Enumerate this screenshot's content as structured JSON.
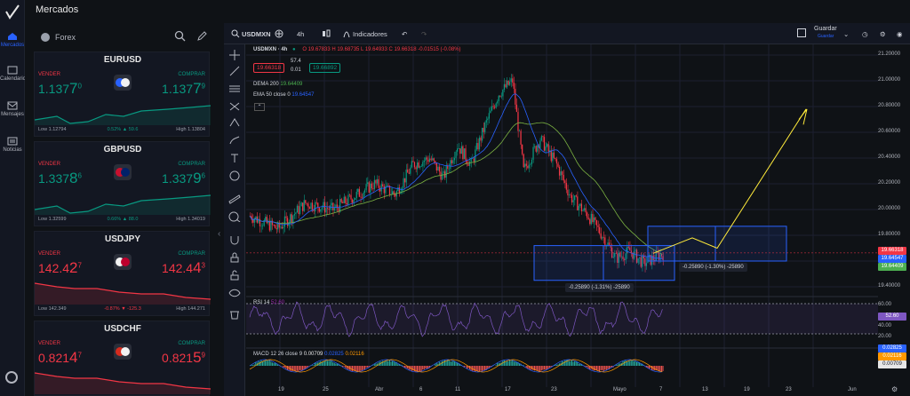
{
  "app": {
    "title": "Mercados"
  },
  "nav": {
    "items": [
      {
        "label": "Mercados",
        "icon": "home-icon"
      },
      {
        "label": "Calendario",
        "icon": "calendar-icon"
      },
      {
        "label": "Mensajes",
        "icon": "mail-icon"
      },
      {
        "label": "Noticias",
        "icon": "news-icon"
      }
    ]
  },
  "sidebar": {
    "section": "Forex"
  },
  "cards": [
    {
      "symbol": "EURUSD",
      "sell_label": "VENDER",
      "buy_label": "COMPRAR",
      "bid_main": "1.137",
      "bid_pip": "7",
      "bid_frac": "0",
      "ask_main": "1.137",
      "ask_pip": "7",
      "ask_frac": "9",
      "low": "Low 1.12794",
      "high": "High 1.13804",
      "change": "0.52% ▲ 59.6",
      "dir": "up"
    },
    {
      "symbol": "GBPUSD",
      "sell_label": "VENDER",
      "buy_label": "COMPRAR",
      "bid_main": "1.337",
      "bid_pip": "8",
      "bid_frac": "6",
      "ask_main": "1.337",
      "ask_pip": "9",
      "ask_frac": "6",
      "low": "Low 1.32599",
      "high": "High 1.34019",
      "change": "0.66% ▲ 88.0",
      "dir": "up"
    },
    {
      "symbol": "USDJPY",
      "sell_label": "VENDER",
      "buy_label": "COMPRAR",
      "bid_main": "142.4",
      "bid_pip": "2",
      "bid_frac": "7",
      "ask_main": "142.4",
      "ask_pip": "4",
      "ask_frac": "3",
      "low": "Low 142.349",
      "high": "High 144.271",
      "change": "-0.87% ▼ -125.3",
      "dir": "down"
    },
    {
      "symbol": "USDCHF",
      "sell_label": "VENDER",
      "buy_label": "COMPRAR",
      "bid_main": "0.821",
      "bid_pip": "4",
      "bid_frac": "7",
      "ask_main": "0.821",
      "ask_pip": "5",
      "ask_frac": "9",
      "low": "",
      "high": "",
      "change": "",
      "dir": "down"
    }
  ],
  "toolbar": {
    "symbol": "USDMXN",
    "interval": "4h",
    "indicators": "Indicadores",
    "save": "Guardar",
    "save_sub": "Guardar"
  },
  "legend": {
    "title": "USDMXN · 4h",
    "ohlc": "O 19.67833  H 19.68735  L 19.64933  C 19.66318  -0.01515 (-0.08%)",
    "bid": "19.66318",
    "spread_top": "57.4",
    "spread_bot": "0.01",
    "ask": "19.66892",
    "dema": "DEMA 200",
    "dema_val": "19.64409",
    "ema": "EMA 50 close 0",
    "ema_val": "19.64547",
    "rsi": "RSI 14",
    "rsi_val": "52.60",
    "macd": "MACD 12 26 close 9",
    "macd_vals": [
      "0.00709",
      "0.02825",
      "0.02116"
    ]
  },
  "price_axis": [
    "21.20000",
    "21.00000",
    "20.80000",
    "20.60000",
    "20.40000",
    "20.20000",
    "20.00000",
    "19.80000",
    "19.60000",
    "19.40000"
  ],
  "price_labels": [
    {
      "value": "19.66318",
      "color": "#f23645"
    },
    {
      "value": "19.64547",
      "color": "#2962ff"
    },
    {
      "value": "19.64409",
      "color": "#4caf50"
    }
  ],
  "rsi_axis": [
    "60.00",
    "52.60",
    "40.00",
    "20.00"
  ],
  "macd_axis": [
    "0.02825",
    "0.02116",
    "0.00709"
  ],
  "time_axis": [
    "19",
    "25",
    "Abr",
    "6",
    "11",
    "17",
    "23",
    "Mayo",
    "7",
    "13",
    "19",
    "23",
    "Jun"
  ],
  "measurements": [
    "-0.25890 (-1.30%) -25890",
    "-0.25890 (-1.31%) -25890"
  ]
}
